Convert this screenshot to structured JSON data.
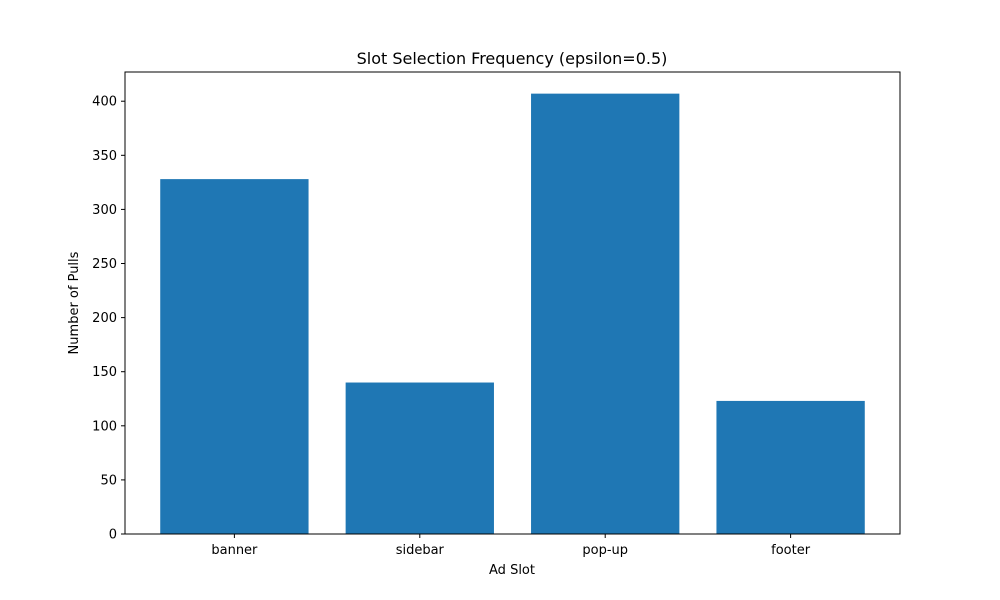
{
  "chart_data": {
    "type": "bar",
    "title": "Slot Selection Frequency (epsilon=0.5)",
    "xlabel": "Ad Slot",
    "ylabel": "Number of Pulls",
    "categories": [
      "banner",
      "sidebar",
      "pop-up",
      "footer"
    ],
    "values": [
      328,
      140,
      407,
      123
    ],
    "ylim": [
      0,
      427
    ],
    "yticks": [
      0,
      50,
      100,
      150,
      200,
      250,
      300,
      350,
      400
    ],
    "grid": false,
    "bar_color": "#1f77b4"
  }
}
